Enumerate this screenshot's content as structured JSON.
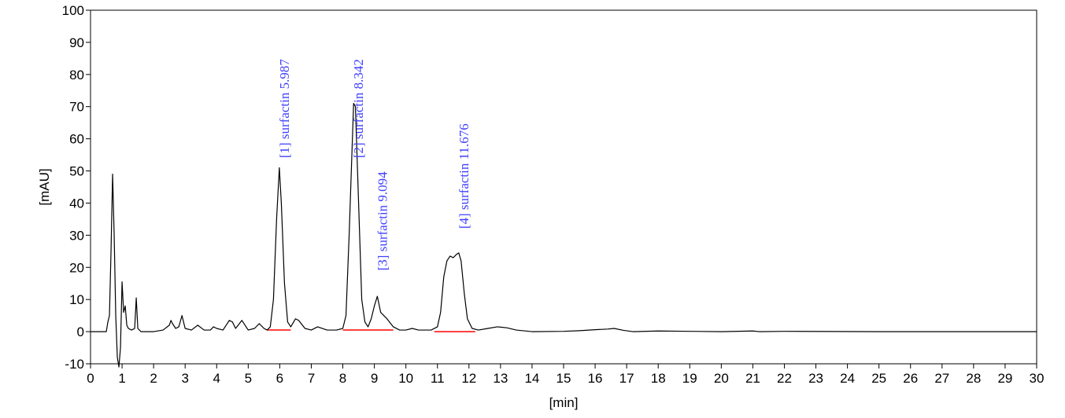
{
  "chart_data": {
    "type": "line",
    "xlabel": "[min]",
    "ylabel": "[mAU]",
    "xlim": [
      0,
      30
    ],
    "ylim": [
      -10,
      100
    ],
    "x_ticks": [
      "0",
      "1",
      "2",
      "3",
      "4",
      "5",
      "6",
      "7",
      "8",
      "9",
      "10",
      "11",
      "12",
      "13",
      "14",
      "15",
      "16",
      "17",
      "18",
      "19",
      "20",
      "21",
      "22",
      "23",
      "24",
      "25",
      "26",
      "27",
      "28",
      "29",
      "30"
    ],
    "y_ticks": [
      "-10",
      "0",
      "10",
      "20",
      "30",
      "40",
      "50",
      "60",
      "70",
      "80",
      "90",
      "100"
    ],
    "grid": false,
    "colors": {
      "trace": "#000000",
      "baseline": "#ff0000",
      "label": "#4040ff",
      "frame": "#000000"
    },
    "series": [
      {
        "points": [
          [
            0,
            0
          ],
          [
            0.5,
            0
          ],
          [
            0.55,
            3
          ],
          [
            0.6,
            5
          ],
          [
            0.65,
            25
          ],
          [
            0.7,
            49
          ],
          [
            0.75,
            30
          ],
          [
            0.8,
            5
          ],
          [
            0.85,
            -8
          ],
          [
            0.9,
            -11
          ],
          [
            0.95,
            -5
          ],
          [
            1.0,
            15.5
          ],
          [
            1.05,
            6
          ],
          [
            1.1,
            8
          ],
          [
            1.15,
            2
          ],
          [
            1.2,
            1
          ],
          [
            1.3,
            0.5
          ],
          [
            1.4,
            1
          ],
          [
            1.45,
            10.5
          ],
          [
            1.5,
            1
          ],
          [
            1.6,
            0
          ],
          [
            2.0,
            0
          ],
          [
            2.3,
            0.5
          ],
          [
            2.5,
            2
          ],
          [
            2.55,
            3.5
          ],
          [
            2.6,
            2.5
          ],
          [
            2.7,
            1
          ],
          [
            2.8,
            1.5
          ],
          [
            2.9,
            5
          ],
          [
            2.95,
            3
          ],
          [
            3.0,
            1
          ],
          [
            3.2,
            0.5
          ],
          [
            3.4,
            2
          ],
          [
            3.6,
            0.5
          ],
          [
            3.8,
            0.5
          ],
          [
            3.9,
            1.5
          ],
          [
            4.0,
            1
          ],
          [
            4.2,
            0.5
          ],
          [
            4.4,
            3.5
          ],
          [
            4.5,
            3
          ],
          [
            4.6,
            1
          ],
          [
            4.8,
            3.5
          ],
          [
            4.9,
            2
          ],
          [
            5.0,
            0.5
          ],
          [
            5.2,
            1
          ],
          [
            5.35,
            2.5
          ],
          [
            5.5,
            1
          ],
          [
            5.6,
            0.5
          ],
          [
            5.7,
            1.5
          ],
          [
            5.8,
            10
          ],
          [
            5.9,
            35
          ],
          [
            5.987,
            51
          ],
          [
            6.05,
            40
          ],
          [
            6.15,
            15
          ],
          [
            6.25,
            3
          ],
          [
            6.35,
            1.5
          ],
          [
            6.5,
            4
          ],
          [
            6.6,
            3.5
          ],
          [
            6.8,
            1
          ],
          [
            7.0,
            0.5
          ],
          [
            7.2,
            1.5
          ],
          [
            7.5,
            0.5
          ],
          [
            7.8,
            0.5
          ],
          [
            8.0,
            1
          ],
          [
            8.1,
            5
          ],
          [
            8.2,
            30
          ],
          [
            8.342,
            71
          ],
          [
            8.4,
            70
          ],
          [
            8.5,
            40
          ],
          [
            8.6,
            10
          ],
          [
            8.7,
            3
          ],
          [
            8.8,
            1.5
          ],
          [
            8.9,
            4
          ],
          [
            9.0,
            8
          ],
          [
            9.094,
            11
          ],
          [
            9.2,
            6
          ],
          [
            9.4,
            4
          ],
          [
            9.6,
            1.5
          ],
          [
            9.8,
            0.5
          ],
          [
            10.0,
            0.5
          ],
          [
            10.2,
            1
          ],
          [
            10.4,
            0.5
          ],
          [
            10.8,
            0.5
          ],
          [
            11.0,
            1.5
          ],
          [
            11.1,
            6
          ],
          [
            11.2,
            17
          ],
          [
            11.3,
            22
          ],
          [
            11.4,
            23.5
          ],
          [
            11.5,
            23
          ],
          [
            11.6,
            24
          ],
          [
            11.676,
            24.5
          ],
          [
            11.75,
            22
          ],
          [
            11.85,
            12
          ],
          [
            11.95,
            4
          ],
          [
            12.1,
            1
          ],
          [
            12.3,
            0.5
          ],
          [
            12.6,
            1
          ],
          [
            12.9,
            1.5
          ],
          [
            13.2,
            1.2
          ],
          [
            13.5,
            0.5
          ],
          [
            14.0,
            0
          ],
          [
            15.0,
            0.1
          ],
          [
            15.5,
            0.3
          ],
          [
            16.0,
            0.6
          ],
          [
            16.4,
            0.8
          ],
          [
            16.6,
            1
          ],
          [
            16.9,
            0.4
          ],
          [
            17.2,
            0
          ],
          [
            18.0,
            0.2
          ],
          [
            19.0,
            0.1
          ],
          [
            20.0,
            0
          ],
          [
            21.0,
            0.2
          ],
          [
            21.2,
            0
          ],
          [
            22.0,
            0.1
          ],
          [
            25.0,
            0
          ],
          [
            30.0,
            0
          ]
        ]
      }
    ],
    "baselines": [
      {
        "from": [
          5.6,
          0.5
        ],
        "to": [
          6.35,
          0.5
        ]
      },
      {
        "from": [
          8.0,
          0.5
        ],
        "to": [
          9.6,
          0.5
        ]
      },
      {
        "from": [
          10.9,
          0
        ],
        "to": [
          12.2,
          0
        ]
      }
    ],
    "annotations": [
      {
        "text": "[1] surfactin 5.987",
        "x": 5.987,
        "y": 54
      },
      {
        "text": "[2] surfactin 8.342",
        "x": 8.342,
        "y": 54
      },
      {
        "text": "[3] surfactin 9.094",
        "x": 9.094,
        "y": 19
      },
      {
        "text": "[4] surfactin 11.676",
        "x": 11.676,
        "y": 32
      }
    ]
  }
}
